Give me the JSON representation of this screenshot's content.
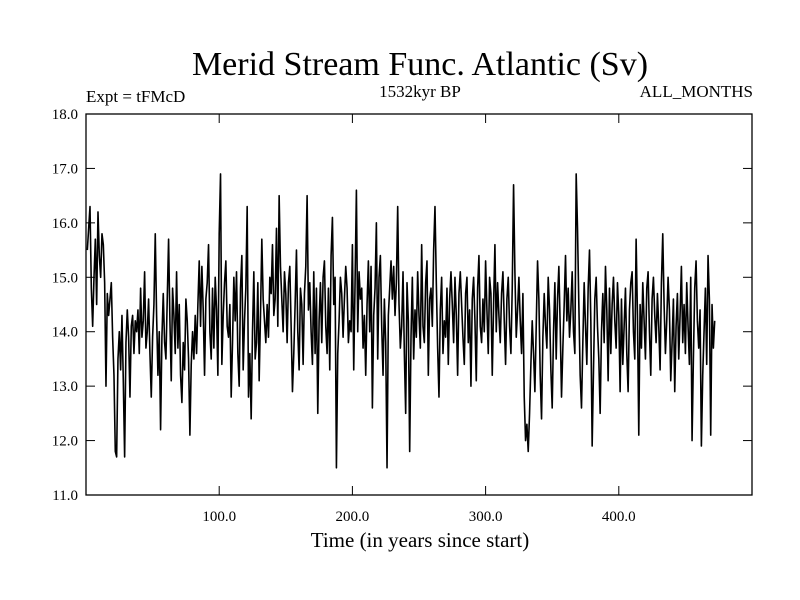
{
  "chart_data": {
    "type": "line",
    "title": "Merid Stream Func. Atlantic (Sv)",
    "subtitle_left": "Expt = tFMcD",
    "subtitle_center": "1532kyr BP",
    "subtitle_right": "ALL_MONTHS",
    "xlabel": "Time (in years since start)",
    "ylabel": "",
    "xlim": [
      0,
      500
    ],
    "ylim": [
      11.0,
      18.0
    ],
    "xticks": [
      100,
      200,
      300,
      400
    ],
    "xtick_labels": [
      "100.0",
      "200.0",
      "300.0",
      "400.0"
    ],
    "yticks": [
      11,
      12,
      13,
      14,
      15,
      16,
      17,
      18
    ],
    "ytick_labels": [
      "11.0",
      "12.0",
      "13.0",
      "14.0",
      "15.0",
      "16.0",
      "17.0",
      "18.0"
    ],
    "grid": false,
    "line_color": "#000000",
    "series": [
      {
        "name": "Merid Stream Func. Atlantic",
        "x_start": 1,
        "x_step": 1,
        "values": [
          15.5,
          15.9,
          16.3,
          14.8,
          14.1,
          15.0,
          15.7,
          14.5,
          16.2,
          15.4,
          15.0,
          15.8,
          15.6,
          14.9,
          13.0,
          14.7,
          14.3,
          14.6,
          14.9,
          13.9,
          13.2,
          11.8,
          11.7,
          13.5,
          14.0,
          13.3,
          14.3,
          13.1,
          11.7,
          13.8,
          14.4,
          13.9,
          12.8,
          14.1,
          14.3,
          13.6,
          14.2,
          14.0,
          14.4,
          13.6,
          14.8,
          13.9,
          14.2,
          15.1,
          13.7,
          14.0,
          14.6,
          13.6,
          12.8,
          13.9,
          14.5,
          15.8,
          14.3,
          13.2,
          14.0,
          12.2,
          13.9,
          14.7,
          13.8,
          13.5,
          14.6,
          15.7,
          14.2,
          13.1,
          14.8,
          14.3,
          13.6,
          15.1,
          13.7,
          14.5,
          13.2,
          12.7,
          13.8,
          13.3,
          14.6,
          14.2,
          13.5,
          12.1,
          13.4,
          14.0,
          13.5,
          14.3,
          13.6,
          14.5,
          15.3,
          14.1,
          15.2,
          14.4,
          13.2,
          14.6,
          14.9,
          15.6,
          14.0,
          13.5,
          14.8,
          13.7,
          15.0,
          14.4,
          13.2,
          15.8,
          16.9,
          13.4,
          14.3,
          14.9,
          15.3,
          14.1,
          13.9,
          14.5,
          12.8,
          13.8,
          15.0,
          14.2,
          15.1,
          13.6,
          13.0,
          14.8,
          15.4,
          13.3,
          14.2,
          14.8,
          16.3,
          12.8,
          13.6,
          12.4,
          14.0,
          15.1,
          13.5,
          13.8,
          14.9,
          13.1,
          14.3,
          15.7,
          14.6,
          14.2,
          13.8,
          14.5,
          13.9,
          15.0,
          14.7,
          15.6,
          14.3,
          14.6,
          15.9,
          14.1,
          16.5,
          15.2,
          14.6,
          14.0,
          15.1,
          14.7,
          13.8,
          14.9,
          15.2,
          14.1,
          12.9,
          13.6,
          14.5,
          15.5,
          14.0,
          13.3,
          14.8,
          14.5,
          13.4,
          14.7,
          15.2,
          16.5,
          14.4,
          14.9,
          14.0,
          13.4,
          15.1,
          13.6,
          14.8,
          12.5,
          14.2,
          14.9,
          13.8,
          15.0,
          15.3,
          14.1,
          13.6,
          14.8,
          13.3,
          15.4,
          16.1,
          14.5,
          15.0,
          11.5,
          13.6,
          14.2,
          15.0,
          14.7,
          13.9,
          14.6,
          15.2,
          14.8,
          13.8,
          14.2,
          14.0,
          15.6,
          13.3,
          14.9,
          16.6,
          14.0,
          15.1,
          14.6,
          14.8,
          13.7,
          14.3,
          13.2,
          14.5,
          15.3,
          14.0,
          15.2,
          12.6,
          14.3,
          14.8,
          16.0,
          13.5,
          15.0,
          15.4,
          14.1,
          13.2,
          14.6,
          13.8,
          11.5,
          14.3,
          14.8,
          15.3,
          14.6,
          15.2,
          14.3,
          14.9,
          16.3,
          14.5,
          13.7,
          14.1,
          15.1,
          13.6,
          12.5,
          14.9,
          14.2,
          11.8,
          13.9,
          15.0,
          13.5,
          14.4,
          13.9,
          15.1,
          14.3,
          13.7,
          15.6,
          14.1,
          13.8,
          14.9,
          15.3,
          13.2,
          14.6,
          14.8,
          14.1,
          15.5,
          16.3,
          14.9,
          13.7,
          12.8,
          14.4,
          15.0,
          13.6,
          14.2,
          13.9,
          14.8,
          13.4,
          14.6,
          15.1,
          14.5,
          13.8,
          15.0,
          14.3,
          13.2,
          14.7,
          15.1,
          14.5,
          13.9,
          13.4,
          14.7,
          15.0,
          13.8,
          14.4,
          13.0,
          14.6,
          15.0,
          14.2,
          13.1,
          14.8,
          15.4,
          14.1,
          13.8,
          14.6,
          14.0,
          15.3,
          14.4,
          13.6,
          15.0,
          14.7,
          13.2,
          14.5,
          15.6,
          14.0,
          14.9,
          14.3,
          13.8,
          14.7,
          15.1,
          14.2,
          13.4,
          14.6,
          15.0,
          14.1,
          13.6,
          14.8,
          16.7,
          15.1,
          13.9,
          14.4,
          15.0,
          14.2,
          13.6,
          14.7,
          12.8,
          12.0,
          12.3,
          11.8,
          12.5,
          13.4,
          14.2,
          13.6,
          12.9,
          14.1,
          15.3,
          14.6,
          13.2,
          12.4,
          13.9,
          14.7,
          14.1,
          13.7,
          15.0,
          14.4,
          13.3,
          12.6,
          14.0,
          14.9,
          13.5,
          14.6,
          15.2,
          14.1,
          12.8,
          13.7,
          14.5,
          15.4,
          14.2,
          14.8,
          13.9,
          14.4,
          15.1,
          14.0,
          13.6,
          16.9,
          15.9,
          14.5,
          13.2,
          12.6,
          13.8,
          14.9,
          14.1,
          13.4,
          14.8,
          15.5,
          14.2,
          11.9,
          13.3,
          14.6,
          15.0,
          14.1,
          13.5,
          12.5,
          14.0,
          14.7,
          13.8,
          15.2,
          14.4,
          13.1,
          14.8,
          13.6,
          14.5,
          15.0,
          14.2,
          13.7,
          14.9,
          14.3,
          12.9,
          14.6,
          13.4,
          14.1,
          14.8,
          13.6,
          12.9,
          14.4,
          14.9,
          15.1,
          14.0,
          13.5,
          15.7,
          14.3,
          12.1,
          14.5,
          13.7,
          14.9,
          14.2,
          13.5,
          14.8,
          15.1,
          14.0,
          13.2,
          14.6,
          15.0,
          14.3,
          13.8,
          14.7,
          14.1,
          13.3,
          14.9,
          15.8,
          14.5,
          13.6,
          14.2,
          15.0,
          14.4,
          13.1,
          13.8,
          14.6,
          12.9,
          14.1,
          14.7,
          13.5,
          14.3,
          15.2,
          13.8,
          14.5,
          13.6,
          14.9,
          14.1,
          13.4,
          15.0,
          12.0,
          13.5,
          14.8,
          15.3,
          14.2,
          13.7,
          14.4,
          11.9,
          13.2,
          14.0,
          14.8,
          13.4,
          15.4,
          14.6,
          12.1,
          14.5,
          13.7,
          14.2
        ]
      }
    ]
  }
}
